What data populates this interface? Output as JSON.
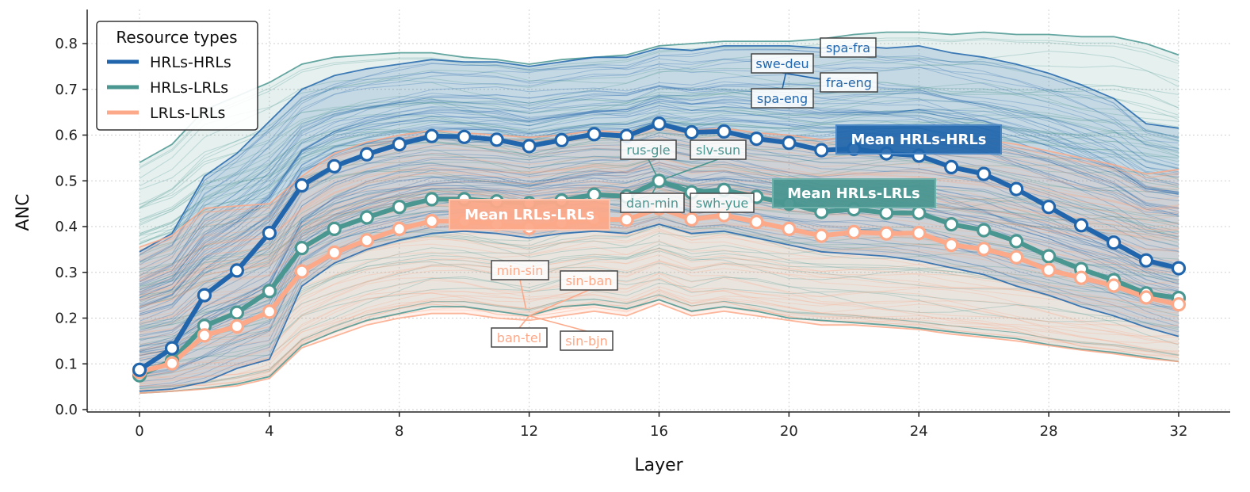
{
  "chart_data": {
    "type": "line",
    "xlabel": "Layer",
    "ylabel": "ANC",
    "xlim": [
      -2,
      33
    ],
    "ylim": [
      0,
      0.87
    ],
    "xticks": [
      0,
      4,
      8,
      12,
      16,
      20,
      24,
      28,
      32
    ],
    "yticks": [
      0.0,
      0.1,
      0.2,
      0.3,
      0.4,
      0.5,
      0.6,
      0.7,
      0.8
    ],
    "ytick_labels": [
      "0.0",
      "0.1",
      "0.2",
      "0.3",
      "0.4",
      "0.5",
      "0.6",
      "0.7",
      "0.8"
    ],
    "grid": true,
    "legend": {
      "title": "Resource types",
      "position": "top-left",
      "entries": [
        "HRLs-HRLs",
        "HRLs-LRLs",
        "LRLs-LRLs"
      ]
    },
    "colors": {
      "HRLs-HRLs": "#2166ac",
      "HRLs-LRLs": "#4a9690",
      "LRLs-LRLs": "#fca98a"
    },
    "x": [
      0,
      1,
      2,
      3,
      4,
      5,
      6,
      7,
      8,
      9,
      10,
      11,
      12,
      13,
      14,
      15,
      16,
      17,
      18,
      19,
      20,
      21,
      22,
      23,
      24,
      25,
      26,
      27,
      28,
      29,
      30,
      31,
      32
    ],
    "series": [
      {
        "name": "Mean HRLs-HRLs",
        "group": "HRLs-HRLs",
        "values": [
          0.087,
          0.134,
          0.25,
          0.304,
          0.386,
          0.49,
          0.532,
          0.558,
          0.58,
          0.598,
          0.596,
          0.59,
          0.576,
          0.589,
          0.602,
          0.598,
          0.625,
          0.606,
          0.608,
          0.592,
          0.583,
          0.567,
          0.57,
          0.56,
          0.555,
          0.53,
          0.515,
          0.482,
          0.443,
          0.403,
          0.365,
          0.326,
          0.309
        ],
        "min": [
          0.04,
          0.045,
          0.06,
          0.09,
          0.11,
          0.27,
          0.32,
          0.35,
          0.37,
          0.385,
          0.39,
          0.385,
          0.375,
          0.385,
          0.39,
          0.385,
          0.405,
          0.385,
          0.39,
          0.375,
          0.36,
          0.345,
          0.34,
          0.335,
          0.325,
          0.31,
          0.295,
          0.27,
          0.25,
          0.225,
          0.205,
          0.18,
          0.16
        ],
        "max": [
          0.345,
          0.385,
          0.51,
          0.56,
          0.63,
          0.7,
          0.73,
          0.745,
          0.755,
          0.765,
          0.76,
          0.76,
          0.75,
          0.76,
          0.77,
          0.77,
          0.79,
          0.785,
          0.795,
          0.795,
          0.795,
          0.79,
          0.795,
          0.79,
          0.795,
          0.78,
          0.77,
          0.755,
          0.735,
          0.71,
          0.68,
          0.625,
          0.615
        ]
      },
      {
        "name": "Mean HRLs-LRLs",
        "group": "HRLs-LRLs",
        "values": [
          0.075,
          0.107,
          0.183,
          0.212,
          0.259,
          0.353,
          0.395,
          0.42,
          0.443,
          0.46,
          0.46,
          0.455,
          0.451,
          0.457,
          0.47,
          0.466,
          0.5,
          0.475,
          0.48,
          0.465,
          0.45,
          0.432,
          0.438,
          0.43,
          0.43,
          0.405,
          0.392,
          0.368,
          0.335,
          0.307,
          0.283,
          0.254,
          0.244
        ],
        "min": [
          0.036,
          0.04,
          0.046,
          0.056,
          0.072,
          0.14,
          0.17,
          0.195,
          0.21,
          0.225,
          0.225,
          0.215,
          0.205,
          0.225,
          0.23,
          0.22,
          0.24,
          0.215,
          0.225,
          0.215,
          0.2,
          0.195,
          0.19,
          0.185,
          0.178,
          0.17,
          0.162,
          0.155,
          0.142,
          0.132,
          0.125,
          0.115,
          0.105
        ],
        "max": [
          0.54,
          0.58,
          0.655,
          0.685,
          0.715,
          0.755,
          0.77,
          0.775,
          0.78,
          0.78,
          0.77,
          0.765,
          0.755,
          0.765,
          0.77,
          0.775,
          0.795,
          0.8,
          0.805,
          0.805,
          0.805,
          0.81,
          0.82,
          0.825,
          0.825,
          0.82,
          0.825,
          0.82,
          0.82,
          0.815,
          0.815,
          0.8,
          0.775
        ]
      },
      {
        "name": "Mean LRLs-LRLs",
        "group": "LRLs-LRLs",
        "values": [
          0.082,
          0.101,
          0.162,
          0.182,
          0.214,
          0.302,
          0.343,
          0.37,
          0.395,
          0.412,
          0.412,
          0.405,
          0.397,
          0.408,
          0.416,
          0.415,
          0.44,
          0.416,
          0.425,
          0.41,
          0.395,
          0.38,
          0.388,
          0.385,
          0.386,
          0.36,
          0.351,
          0.333,
          0.305,
          0.288,
          0.271,
          0.245,
          0.23
        ],
        "min": [
          0.036,
          0.04,
          0.045,
          0.052,
          0.068,
          0.135,
          0.16,
          0.185,
          0.2,
          0.21,
          0.21,
          0.2,
          0.195,
          0.205,
          0.215,
          0.205,
          0.232,
          0.205,
          0.215,
          0.205,
          0.195,
          0.185,
          0.185,
          0.18,
          0.175,
          0.165,
          0.158,
          0.15,
          0.14,
          0.13,
          0.122,
          0.112,
          0.105
        ],
        "max": [
          0.355,
          0.38,
          0.44,
          0.445,
          0.45,
          0.51,
          0.56,
          0.585,
          0.6,
          0.61,
          0.605,
          0.6,
          0.595,
          0.6,
          0.61,
          0.605,
          0.625,
          0.61,
          0.615,
          0.605,
          0.6,
          0.59,
          0.595,
          0.595,
          0.6,
          0.595,
          0.59,
          0.58,
          0.565,
          0.55,
          0.535,
          0.515,
          0.525
        ]
      }
    ],
    "mean_labels": {
      "HRLs-HRLs": "Mean HRLs-HRLs",
      "HRLs-LRLs": "Mean HRLs-LRLs",
      "LRLs-LRLs": "Mean LRLs-LRLs"
    },
    "annotations": [
      {
        "text": "spa-fra",
        "group": "HRLs-HRLs"
      },
      {
        "text": "swe-deu",
        "group": "HRLs-HRLs"
      },
      {
        "text": "fra-eng",
        "group": "HRLs-HRLs"
      },
      {
        "text": "spa-eng",
        "group": "HRLs-HRLs"
      },
      {
        "text": "rus-gle",
        "group": "HRLs-LRLs"
      },
      {
        "text": "slv-sun",
        "group": "HRLs-LRLs"
      },
      {
        "text": "dan-min",
        "group": "HRLs-LRLs"
      },
      {
        "text": "swh-yue",
        "group": "HRLs-LRLs"
      },
      {
        "text": "min-sin",
        "group": "LRLs-LRLs"
      },
      {
        "text": "sin-ban",
        "group": "LRLs-LRLs"
      },
      {
        "text": "ban-tel",
        "group": "LRLs-LRLs"
      },
      {
        "text": "sin-bjn",
        "group": "LRLs-LRLs"
      }
    ]
  }
}
